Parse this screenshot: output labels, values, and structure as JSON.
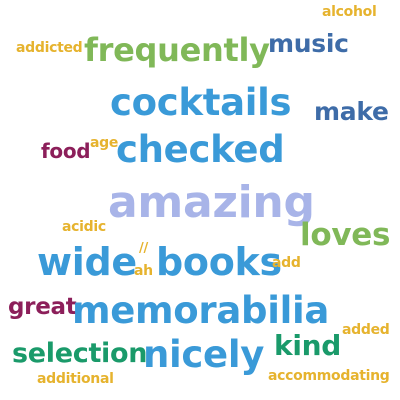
{
  "words": [
    {
      "text": "alcohol",
      "color": "#e6b32e"
    },
    {
      "text": "addicted",
      "color": "#e6b32e"
    },
    {
      "text": "frequently",
      "color": "#80b858"
    },
    {
      "text": "music",
      "color": "#3e6ca8"
    },
    {
      "text": "cocktails",
      "color": "#3a9ad8"
    },
    {
      "text": "make",
      "color": "#3e6ca8"
    },
    {
      "text": "food",
      "color": "#8c1f5a"
    },
    {
      "text": "age",
      "color": "#e6b32e"
    },
    {
      "text": "checked",
      "color": "#3a9ad8"
    },
    {
      "text": "amazing",
      "color": "#a8b4e8"
    },
    {
      "text": "acidic",
      "color": "#e6b32e"
    },
    {
      "text": "loves",
      "color": "#80b858"
    },
    {
      "text": "//",
      "color": "#e6b32e"
    },
    {
      "text": "wide",
      "color": "#3a9ad8"
    },
    {
      "text": "ah",
      "color": "#e6b32e"
    },
    {
      "text": "books",
      "color": "#3a9ad8"
    },
    {
      "text": "add",
      "color": "#e6b32e"
    },
    {
      "text": "great",
      "color": "#8c1f5a"
    },
    {
      "text": "memorabilia",
      "color": "#3a9ad8"
    },
    {
      "text": "added",
      "color": "#e6b32e"
    },
    {
      "text": "kind",
      "color": "#1a9a6a"
    },
    {
      "text": "selection",
      "color": "#1a9a6a"
    },
    {
      "text": "nicely",
      "color": "#3a9ad8"
    },
    {
      "text": "additional",
      "color": "#e6b32e"
    },
    {
      "text": "accommodating",
      "color": "#e6b32e"
    }
  ]
}
